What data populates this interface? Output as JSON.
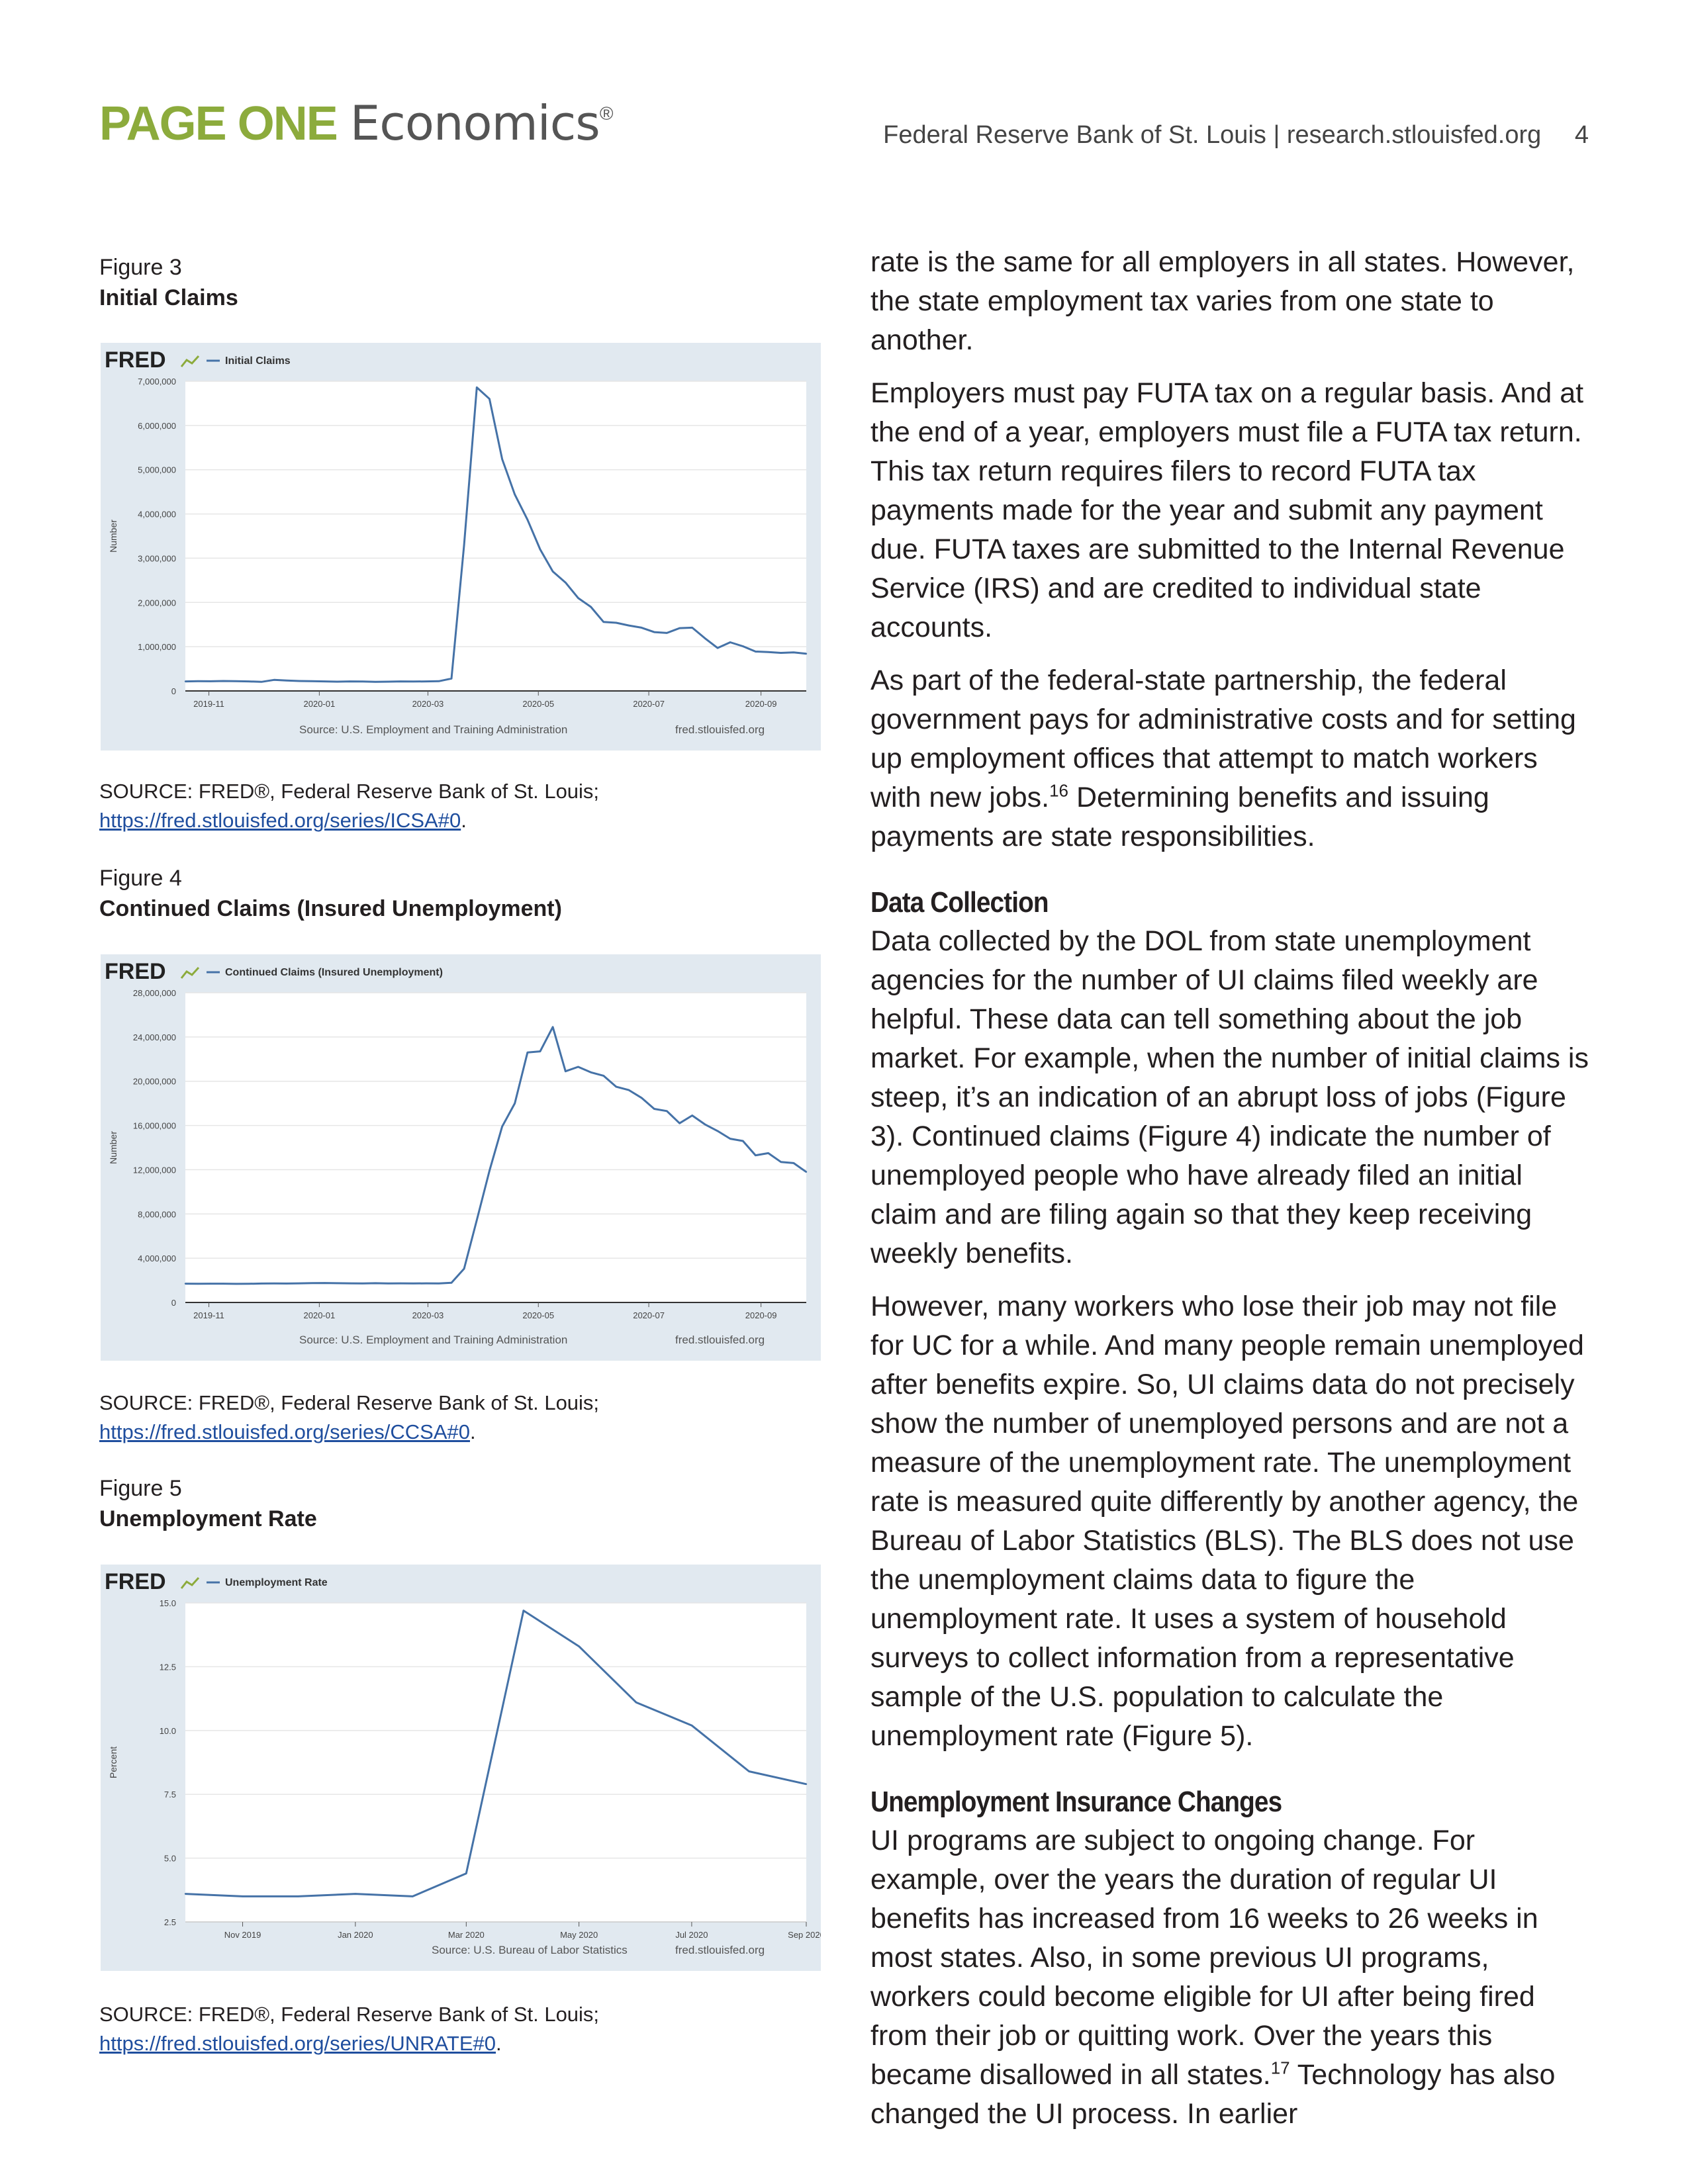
{
  "header": {
    "brand_bold": "PAGE ONE",
    "brand_light": "Economics",
    "brand_reg": "®",
    "publisher": "Federal Reserve Bank of St. Louis | research.stlouisfed.org",
    "page_number": "4"
  },
  "figures": [
    {
      "label": "Figure 3",
      "title": "Initial Claims",
      "fred_logo": "FRED",
      "legend": "— Initial Claims",
      "source_line": "Source: U.S. Employment and Training Administration",
      "site": "fred.stlouisfed.org",
      "source_prefix": "SOURCE: FRED®, Federal Reserve Bank of St. Louis;",
      "source_url": "https://fred.stlouisfed.org/series/ICSA#0"
    },
    {
      "label": "Figure 4",
      "title": "Continued Claims (Insured Unemployment)",
      "fred_logo": "FRED",
      "legend": "— Continued Claims (Insured Unemployment)",
      "source_line": "Source: U.S. Employment and Training Administration",
      "site": "fred.stlouisfed.org",
      "source_prefix": "SOURCE: FRED®, Federal Reserve Bank of St. Louis;",
      "source_url": "https://fred.stlouisfed.org/series/CCSA#0"
    },
    {
      "label": "Figure 5",
      "title": "Unemployment Rate",
      "fred_logo": "FRED",
      "legend": "— Unemployment Rate",
      "source_line": "Source: U.S. Bureau of Labor Statistics",
      "site": "fred.stlouisfed.org",
      "source_prefix": "SOURCE: FRED®, Federal Reserve Bank of St. Louis;",
      "source_url": "https://fred.stlouisfed.org/series/UNRATE#0"
    }
  ],
  "chart_data": [
    {
      "type": "line",
      "title": "Initial Claims",
      "ylabel": "Number",
      "ylim": [
        0,
        7000000
      ],
      "y_ticks": [
        "0",
        "1,000,000",
        "2,000,000",
        "3,000,000",
        "4,000,000",
        "5,000,000",
        "6,000,000",
        "7,000,000"
      ],
      "x_ticks": [
        "2019-11",
        "2020-01",
        "2020-03",
        "2020-05",
        "2020-07",
        "2020-09"
      ],
      "series": [
        {
          "name": "Initial Claims",
          "color": "#4572a7",
          "x": [
            "2019-10-19",
            "2019-10-26",
            "2019-11-02",
            "2019-11-09",
            "2019-11-16",
            "2019-11-23",
            "2019-11-30",
            "2019-12-07",
            "2019-12-14",
            "2019-12-21",
            "2019-12-28",
            "2020-01-04",
            "2020-01-11",
            "2020-01-18",
            "2020-01-25",
            "2020-02-01",
            "2020-02-08",
            "2020-02-15",
            "2020-02-22",
            "2020-02-29",
            "2020-03-07",
            "2020-03-14",
            "2020-03-21",
            "2020-03-28",
            "2020-04-04",
            "2020-04-11",
            "2020-04-18",
            "2020-04-25",
            "2020-05-02",
            "2020-05-09",
            "2020-05-16",
            "2020-05-23",
            "2020-05-30",
            "2020-06-06",
            "2020-06-13",
            "2020-06-20",
            "2020-06-27",
            "2020-07-04",
            "2020-07-11",
            "2020-07-18",
            "2020-07-25",
            "2020-08-01",
            "2020-08-08",
            "2020-08-15",
            "2020-08-22",
            "2020-08-29",
            "2020-09-05",
            "2020-09-12",
            "2020-09-19",
            "2020-09-26"
          ],
          "values": [
            215000,
            220000,
            218000,
            225000,
            222000,
            215000,
            205000,
            250000,
            235000,
            225000,
            220000,
            215000,
            210000,
            215000,
            212000,
            205000,
            210000,
            215000,
            212000,
            215000,
            220000,
            280000,
            3300000,
            6860000,
            6600000,
            5240000,
            4440000,
            3870000,
            3200000,
            2700000,
            2450000,
            2100000,
            1900000,
            1560000,
            1540000,
            1480000,
            1430000,
            1330000,
            1310000,
            1420000,
            1430000,
            1190000,
            970000,
            1100000,
            1010000,
            890000,
            880000,
            860000,
            870000,
            840000
          ]
        }
      ]
    },
    {
      "type": "line",
      "title": "Continued Claims (Insured Unemployment)",
      "ylabel": "Number",
      "ylim": [
        0,
        28000000
      ],
      "y_ticks": [
        "0",
        "4,000,000",
        "8,000,000",
        "12,000,000",
        "16,000,000",
        "20,000,000",
        "24,000,000",
        "28,000,000"
      ],
      "x_ticks": [
        "2019-11",
        "2020-01",
        "2020-03",
        "2020-05",
        "2020-07",
        "2020-09"
      ],
      "series": [
        {
          "name": "Continued Claims (Insured Unemployment)",
          "color": "#4572a7",
          "x": [
            "2019-10-19",
            "2019-10-26",
            "2019-11-02",
            "2019-11-09",
            "2019-11-16",
            "2019-11-23",
            "2019-11-30",
            "2019-12-07",
            "2019-12-14",
            "2019-12-21",
            "2019-12-28",
            "2020-01-04",
            "2020-01-11",
            "2020-01-18",
            "2020-01-25",
            "2020-02-01",
            "2020-02-08",
            "2020-02-15",
            "2020-02-22",
            "2020-02-29",
            "2020-03-07",
            "2020-03-14",
            "2020-03-21",
            "2020-03-28",
            "2020-04-04",
            "2020-04-11",
            "2020-04-18",
            "2020-04-25",
            "2020-05-02",
            "2020-05-09",
            "2020-05-16",
            "2020-05-23",
            "2020-05-30",
            "2020-06-06",
            "2020-06-13",
            "2020-06-20",
            "2020-06-27",
            "2020-07-04",
            "2020-07-11",
            "2020-07-18",
            "2020-07-25",
            "2020-08-01",
            "2020-08-08",
            "2020-08-15",
            "2020-08-22",
            "2020-08-29",
            "2020-09-05",
            "2020-09-12",
            "2020-09-19",
            "2020-09-26"
          ],
          "values": [
            1700000,
            1690000,
            1700000,
            1700000,
            1680000,
            1690000,
            1710000,
            1720000,
            1710000,
            1730000,
            1750000,
            1760000,
            1740000,
            1730000,
            1720000,
            1740000,
            1720000,
            1730000,
            1720000,
            1730000,
            1720000,
            1780000,
            3050000,
            7450000,
            11900000,
            15900000,
            18000000,
            22600000,
            22700000,
            24900000,
            20900000,
            21300000,
            20800000,
            20500000,
            19500000,
            19200000,
            18500000,
            17500000,
            17300000,
            16200000,
            16900000,
            16100000,
            15500000,
            14800000,
            14600000,
            13300000,
            13500000,
            12700000,
            12600000,
            11800000
          ]
        }
      ]
    },
    {
      "type": "line",
      "title": "Unemployment Rate",
      "ylabel": "Percent",
      "ylim": [
        2.5,
        15.0
      ],
      "y_ticks": [
        "2.5",
        "5.0",
        "7.5",
        "10.0",
        "12.5",
        "15.0"
      ],
      "x_ticks": [
        "Nov 2019",
        "Jan 2020",
        "Mar 2020",
        "May 2020",
        "Jul 2020",
        "Sep 2020"
      ],
      "series": [
        {
          "name": "Unemployment Rate",
          "color": "#4572a7",
          "x": [
            "Oct 2019",
            "Nov 2019",
            "Dec 2019",
            "Jan 2020",
            "Feb 2020",
            "Mar 2020",
            "Apr 2020",
            "May 2020",
            "Jun 2020",
            "Jul 2020",
            "Aug 2020",
            "Sep 2020"
          ],
          "values": [
            3.6,
            3.5,
            3.5,
            3.6,
            3.5,
            4.4,
            14.7,
            13.3,
            11.1,
            10.2,
            8.4,
            7.9
          ]
        }
      ]
    }
  ],
  "body": {
    "p1": "rate is the same for all employers in all states. However, the state employment tax varies from one state to another.",
    "p2": "Employers must pay FUTA tax on a regular basis. And at the end of a year, employers must file a FUTA tax return. This tax return requires filers to record FUTA tax payments made for the year and submit any payment due. FUTA taxes are submitted to the Internal Revenue Service (IRS) and are credited to individual state accounts.",
    "p3a": "As part of the federal-state partnership, the federal government pays for administrative costs and for setting up employment offices that attempt to match workers with new jobs.",
    "p3_note": "16",
    "p3b": " Determining benefits and issuing payments are state responsibilities.",
    "h1": "Data Collection",
    "p4": "Data collected by the DOL from state unemployment agencies for the number of UI claims filed weekly are helpful. These data can tell something about the job market. For example, when the number of initial claims is steep, it’s an indication of an abrupt loss of jobs (Figure 3). Continued claims (Figure 4) indicate the number of unemployed people who have already filed an initial claim and are filing again so that they keep receiving weekly benefits.",
    "p5": "However, many workers who lose their job may not file for UC for a while. And many people remain unemployed after benefits expire. So, UI claims data do not precisely show the number of unemployed persons and are not a measure of the unemployment rate. The unemployment rate is measured quite differently by another agency, the Bureau of Labor Statistics (BLS). The BLS does not use the unemployment claims data to figure the unemployment rate. It uses a system of household surveys to collect information from a representative sample of the U.S. population to calculate the unemployment rate (Figure 5).",
    "h2": "Unemployment Insurance Changes",
    "p6a": "UI programs are subject to ongoing change. For example, over the years the duration of regular UI benefits has increased from 16 weeks to 26 weeks in most states. Also, in some previous UI programs, workers could become eligible for UI after being fired from their job or quitting work. Over the years this became disallowed in all states.",
    "p6_note": "17",
    "p6b": " Technology has also changed the UI process. In earlier"
  }
}
